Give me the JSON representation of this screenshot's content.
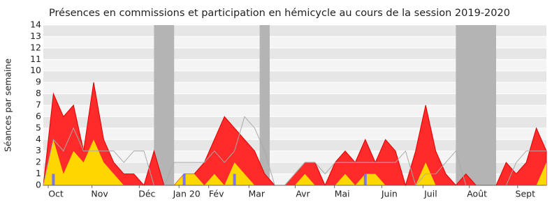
{
  "chart_data": {
    "type": "area",
    "title": "Présences en commissions et participation en hémicycle au cours de la session 2019-2020",
    "y_label": "Séances par semaine",
    "x": [
      0,
      1,
      2,
      3,
      4,
      5,
      6,
      7,
      8,
      9,
      10,
      11,
      12,
      13,
      14,
      15,
      16,
      17,
      18,
      19,
      20,
      21,
      22,
      23,
      24,
      25,
      26,
      27,
      28,
      29,
      30,
      31,
      32,
      33,
      34,
      35,
      36,
      37,
      38,
      39,
      40,
      41,
      42,
      43,
      44,
      45,
      46,
      47,
      48,
      49,
      50
    ],
    "xlim": [
      0,
      50
    ],
    "xticks": [
      {
        "value": 1.25,
        "label": "Oct"
      },
      {
        "value": 5.6,
        "label": "Nov"
      },
      {
        "value": 10.3,
        "label": "Déc"
      },
      {
        "value": 14.25,
        "label": "Jan 20"
      },
      {
        "value": 17.2,
        "label": "Fév"
      },
      {
        "value": 21.2,
        "label": "Mar"
      },
      {
        "value": 25.8,
        "label": "Avr"
      },
      {
        "value": 29.7,
        "label": "Mai"
      },
      {
        "value": 34.4,
        "label": "Juin"
      },
      {
        "value": 38.5,
        "label": "Juil"
      },
      {
        "value": 43.1,
        "label": "Août"
      },
      {
        "value": 47.9,
        "label": "Sept"
      }
    ],
    "ylim": [
      0,
      14
    ],
    "yticks": [
      0,
      1,
      2,
      3,
      4,
      5,
      6,
      7,
      8,
      9,
      10,
      11,
      12,
      13,
      14
    ],
    "shaded_ranges": [
      [
        11,
        13
      ],
      [
        21.5,
        22.5
      ],
      [
        41,
        45
      ]
    ],
    "series": [
      {
        "color": "#ff2a2a",
        "values": [
          0,
          8,
          6,
          7,
          3,
          9,
          4,
          2,
          1,
          1,
          0,
          3,
          0,
          0,
          1,
          1,
          2,
          4,
          6,
          5,
          4,
          3,
          1,
          0,
          0,
          1,
          2,
          2,
          0,
          2,
          3,
          2,
          4,
          2,
          4,
          3,
          0,
          3,
          7,
          3,
          1,
          0,
          1,
          0,
          0,
          0,
          2,
          1,
          2,
          5,
          3
        ]
      },
      {
        "color": "#ffd700",
        "values": [
          0,
          4,
          1,
          3,
          2,
          4,
          2,
          1,
          0,
          0,
          0,
          0,
          0,
          0,
          1,
          1,
          0,
          1,
          0,
          2,
          1,
          0,
          0,
          0,
          0,
          0,
          1,
          0,
          0,
          0,
          1,
          0,
          1,
          1,
          0,
          0,
          0,
          0,
          2,
          0,
          0,
          0,
          0,
          0,
          0,
          0,
          0,
          0,
          0,
          0,
          2
        ]
      },
      {
        "type": "line",
        "color": "#aaaaaa",
        "values": [
          0,
          4,
          3,
          5,
          3,
          3,
          3,
          3,
          2,
          3,
          3,
          0,
          0,
          2,
          2,
          2,
          2,
          3,
          2,
          3,
          6,
          5,
          3,
          0,
          0,
          1,
          2,
          2,
          1,
          2,
          2,
          2,
          2,
          2,
          2,
          2,
          3,
          0,
          1,
          1,
          2,
          3,
          0,
          0,
          0,
          0,
          0,
          2,
          3,
          3,
          3
        ]
      },
      {
        "type": "bar",
        "color": "#7777ee",
        "values": [
          null,
          1,
          null,
          null,
          null,
          null,
          null,
          null,
          null,
          null,
          null,
          null,
          null,
          null,
          1,
          null,
          null,
          null,
          null,
          1,
          null,
          null,
          null,
          null,
          null,
          null,
          null,
          null,
          null,
          null,
          null,
          null,
          1,
          null,
          null,
          null,
          null,
          null,
          null,
          null,
          null,
          null,
          null,
          null,
          null,
          null,
          null,
          null,
          null,
          null,
          null
        ]
      }
    ]
  }
}
